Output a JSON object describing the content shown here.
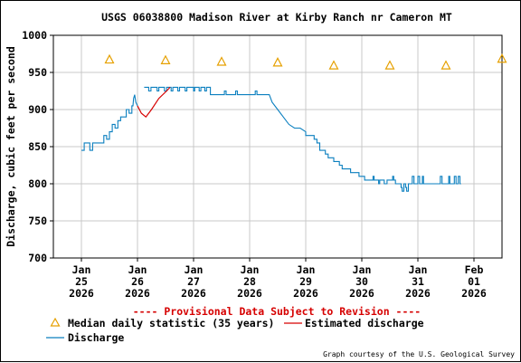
{
  "chart_data": {
    "type": "line",
    "title": "USGS 06038800 Madison River at Kirby Ranch nr Cameron MT",
    "ylabel": "Discharge, cubic feet per second",
    "xlabel": "",
    "ylim": [
      700,
      1000
    ],
    "yticks": [
      700,
      750,
      800,
      850,
      900,
      950,
      1000
    ],
    "x_ticks": [
      {
        "month": "Jan",
        "day": "25",
        "year": "2026"
      },
      {
        "month": "Jan",
        "day": "26",
        "year": "2026"
      },
      {
        "month": "Jan",
        "day": "27",
        "year": "2026"
      },
      {
        "month": "Jan",
        "day": "28",
        "year": "2026"
      },
      {
        "month": "Jan",
        "day": "29",
        "year": "2026"
      },
      {
        "month": "Jan",
        "day": "30",
        "year": "2026"
      },
      {
        "month": "Jan",
        "day": "31",
        "year": "2026"
      },
      {
        "month": "Feb",
        "day": "01",
        "year": "2026"
      }
    ],
    "grid": true,
    "provisional_note": "---- Provisional Data Subject to Revision ----",
    "credit": "Graph courtesy of the U.S. Geological Survey",
    "legend": {
      "median": "Median daily statistic (35 years)",
      "estimated": "Estimated discharge",
      "discharge": "Discharge"
    },
    "colors": {
      "discharge": "#0a7fbf",
      "estimated": "#d60000",
      "median": "#e6a000",
      "provisional": "#d60000",
      "grid": "#c8c8c8"
    },
    "series": [
      {
        "name": "Discharge",
        "points": [
          [
            0.0,
            845
          ],
          [
            0.05,
            845
          ],
          [
            0.05,
            855
          ],
          [
            0.15,
            855
          ],
          [
            0.15,
            845
          ],
          [
            0.2,
            845
          ],
          [
            0.2,
            855
          ],
          [
            0.4,
            855
          ],
          [
            0.4,
            865
          ],
          [
            0.45,
            865
          ],
          [
            0.45,
            860
          ],
          [
            0.5,
            860
          ],
          [
            0.5,
            870
          ],
          [
            0.55,
            870
          ],
          [
            0.55,
            880
          ],
          [
            0.6,
            880
          ],
          [
            0.6,
            875
          ],
          [
            0.65,
            875
          ],
          [
            0.65,
            885
          ],
          [
            0.7,
            885
          ],
          [
            0.7,
            890
          ],
          [
            0.8,
            890
          ],
          [
            0.8,
            900
          ],
          [
            0.85,
            900
          ],
          [
            0.85,
            895
          ],
          [
            0.9,
            895
          ],
          [
            0.9,
            905
          ],
          [
            0.92,
            905
          ],
          [
            0.93,
            915
          ],
          [
            0.95,
            920
          ],
          [
            0.97,
            910
          ],
          [
            1.0,
            905
          ]
        ]
      },
      {
        "name": "Discharge",
        "points": [
          [
            1.12,
            930
          ],
          [
            1.2,
            930
          ],
          [
            1.2,
            925
          ],
          [
            1.24,
            925
          ],
          [
            1.24,
            930
          ],
          [
            1.35,
            930
          ],
          [
            1.35,
            925
          ],
          [
            1.38,
            925
          ],
          [
            1.38,
            930
          ],
          [
            1.48,
            930
          ],
          [
            1.48,
            925
          ],
          [
            1.52,
            925
          ],
          [
            1.52,
            930
          ],
          [
            1.6,
            930
          ],
          [
            1.6,
            925
          ],
          [
            1.63,
            925
          ],
          [
            1.63,
            930
          ],
          [
            1.72,
            930
          ],
          [
            1.72,
            925
          ],
          [
            1.75,
            925
          ],
          [
            1.75,
            930
          ],
          [
            1.85,
            930
          ],
          [
            1.85,
            925
          ],
          [
            1.88,
            925
          ],
          [
            1.88,
            930
          ],
          [
            2.0,
            930
          ],
          [
            2.0,
            925
          ],
          [
            2.02,
            925
          ],
          [
            2.02,
            930
          ],
          [
            2.1,
            930
          ],
          [
            2.1,
            925
          ],
          [
            2.13,
            925
          ],
          [
            2.13,
            930
          ],
          [
            2.2,
            930
          ],
          [
            2.2,
            925
          ],
          [
            2.23,
            925
          ],
          [
            2.23,
            930
          ],
          [
            2.3,
            930
          ],
          [
            2.3,
            920
          ],
          [
            2.55,
            920
          ],
          [
            2.55,
            925
          ],
          [
            2.58,
            925
          ],
          [
            2.58,
            920
          ],
          [
            2.75,
            920
          ],
          [
            2.75,
            925
          ],
          [
            2.78,
            925
          ],
          [
            2.78,
            920
          ],
          [
            3.1,
            920
          ],
          [
            3.1,
            925
          ],
          [
            3.13,
            925
          ],
          [
            3.13,
            920
          ],
          [
            3.35,
            920
          ],
          [
            3.4,
            910
          ],
          [
            3.5,
            900
          ],
          [
            3.6,
            890
          ],
          [
            3.7,
            880
          ],
          [
            3.8,
            875
          ],
          [
            3.9,
            875
          ],
          [
            4.0,
            870
          ],
          [
            4.0,
            865
          ],
          [
            4.15,
            865
          ],
          [
            4.15,
            860
          ],
          [
            4.2,
            860
          ],
          [
            4.2,
            855
          ],
          [
            4.25,
            855
          ],
          [
            4.25,
            845
          ],
          [
            4.35,
            845
          ],
          [
            4.35,
            840
          ],
          [
            4.4,
            840
          ],
          [
            4.4,
            835
          ],
          [
            4.5,
            835
          ],
          [
            4.5,
            830
          ],
          [
            4.6,
            830
          ],
          [
            4.6,
            825
          ],
          [
            4.65,
            825
          ],
          [
            4.65,
            820
          ],
          [
            4.8,
            820
          ],
          [
            4.8,
            815
          ],
          [
            4.95,
            815
          ],
          [
            4.95,
            810
          ],
          [
            5.05,
            810
          ],
          [
            5.05,
            805
          ],
          [
            5.2,
            805
          ],
          [
            5.2,
            810
          ],
          [
            5.22,
            810
          ],
          [
            5.22,
            805
          ],
          [
            5.3,
            805
          ],
          [
            5.3,
            800
          ],
          [
            5.32,
            800
          ],
          [
            5.32,
            805
          ],
          [
            5.4,
            805
          ],
          [
            5.4,
            800
          ],
          [
            5.45,
            800
          ],
          [
            5.45,
            805
          ],
          [
            5.55,
            805
          ],
          [
            5.55,
            810
          ],
          [
            5.57,
            810
          ],
          [
            5.57,
            805
          ],
          [
            5.6,
            805
          ],
          [
            5.6,
            800
          ],
          [
            5.7,
            800
          ],
          [
            5.7,
            795
          ],
          [
            5.72,
            795
          ],
          [
            5.72,
            790
          ],
          [
            5.75,
            790
          ],
          [
            5.75,
            800
          ],
          [
            5.78,
            800
          ],
          [
            5.78,
            795
          ],
          [
            5.8,
            795
          ],
          [
            5.8,
            790
          ],
          [
            5.83,
            790
          ],
          [
            5.83,
            800
          ],
          [
            5.9,
            800
          ],
          [
            5.9,
            810
          ],
          [
            5.93,
            810
          ],
          [
            5.93,
            800
          ],
          [
            6.0,
            800
          ],
          [
            6.0,
            810
          ],
          [
            6.03,
            810
          ],
          [
            6.03,
            800
          ],
          [
            6.08,
            800
          ],
          [
            6.08,
            810
          ],
          [
            6.1,
            810
          ],
          [
            6.1,
            800
          ],
          [
            6.4,
            800
          ],
          [
            6.4,
            810
          ],
          [
            6.43,
            810
          ],
          [
            6.43,
            800
          ],
          [
            6.55,
            800
          ],
          [
            6.55,
            810
          ],
          [
            6.57,
            810
          ],
          [
            6.57,
            800
          ],
          [
            6.65,
            800
          ],
          [
            6.65,
            810
          ],
          [
            6.68,
            810
          ],
          [
            6.68,
            800
          ],
          [
            6.72,
            800
          ],
          [
            6.72,
            810
          ],
          [
            6.75,
            810
          ],
          [
            6.75,
            800
          ],
          [
            6.77,
            800
          ]
        ]
      }
    ],
    "estimated": {
      "name": "Estimated discharge",
      "points": [
        [
          1.0,
          905
        ],
        [
          1.07,
          895
        ],
        [
          1.15,
          890
        ],
        [
          1.25,
          900
        ],
        [
          1.38,
          915
        ],
        [
          1.52,
          925
        ],
        [
          1.58,
          930
        ]
      ]
    },
    "median": {
      "name": "Median daily statistic (35 years)",
      "points": [
        [
          0.5,
          967
        ],
        [
          1.5,
          966
        ],
        [
          2.5,
          964
        ],
        [
          3.5,
          963
        ],
        [
          4.5,
          959
        ],
        [
          5.5,
          959
        ],
        [
          6.5,
          959
        ],
        [
          7.5,
          968
        ]
      ]
    }
  }
}
